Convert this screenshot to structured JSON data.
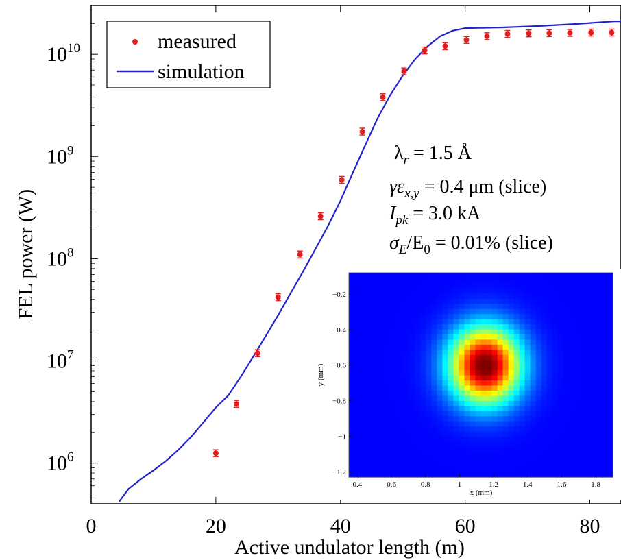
{
  "chart_data": [
    {
      "type": "scatter",
      "xlabel": "Active undulator length (m)",
      "ylabel": "FEL power (W)",
      "xlim": [
        0,
        85
      ],
      "ylim": [
        400000,
        30000000000
      ],
      "yscale": "log",
      "x_ticks": [
        0,
        20,
        40,
        60,
        80
      ],
      "y_ticks": [
        {
          "value": 1000000,
          "base": "10",
          "exp": "6"
        },
        {
          "value": 10000000,
          "base": "10",
          "exp": "7"
        },
        {
          "value": 100000000,
          "base": "10",
          "exp": "8"
        },
        {
          "value": 1000000000,
          "base": "10",
          "exp": "9"
        },
        {
          "value": 10000000000,
          "base": "10",
          "exp": "10"
        }
      ],
      "legend": {
        "position": "top-left",
        "entries": [
          "measured",
          "simulation"
        ]
      },
      "grid": false,
      "series": [
        {
          "name": "measured",
          "color": "#e02020",
          "marker": "dot-with-errorbar",
          "x": [
            20.0,
            23.3,
            26.7,
            30.0,
            33.5,
            36.8,
            40.2,
            43.5,
            46.8,
            50.2,
            53.5,
            56.8,
            60.2,
            63.5,
            66.8,
            70.2,
            73.5,
            76.8,
            80.2,
            83.5
          ],
          "y": [
            1250000,
            3800000,
            11900000,
            42000000,
            110000000,
            260000000,
            590000000,
            1750000000,
            3800000000,
            6800000000,
            10900000000,
            12000000000,
            13800000000,
            15000000000,
            15800000000,
            16000000000,
            16100000000,
            16200000000,
            16300000000,
            16300000000
          ]
        },
        {
          "name": "simulation",
          "color": "#2222cc",
          "marker": "line",
          "x": [
            4.5,
            6,
            8,
            10,
            12,
            14,
            16,
            18,
            20,
            22,
            24,
            26,
            28,
            30,
            32,
            34,
            36,
            38,
            40,
            42,
            44,
            46,
            48,
            50,
            52,
            54,
            56,
            58,
            60,
            62,
            64,
            66,
            68,
            70,
            72,
            74,
            76,
            78,
            80,
            82,
            84,
            85
          ],
          "y": [
            420000,
            560000,
            700000,
            850000,
            1050000,
            1350000,
            1800000,
            2500000,
            3500000,
            4600000,
            7000000,
            11000000,
            17500000,
            28000000,
            46000000,
            75000000,
            125000000,
            210000000,
            370000000,
            700000000,
            1300000000,
            2400000000,
            4000000000,
            6200000000,
            9000000000,
            12000000000,
            15000000000,
            17000000000,
            18000000000,
            18100000000,
            18200000000,
            18300000000,
            18500000000,
            18700000000,
            18900000000,
            19200000000,
            19500000000,
            19800000000,
            20200000000,
            20600000000,
            21000000000,
            21000000000
          ]
        }
      ],
      "annotations": [
        {
          "key": "lambda",
          "sym": "λ",
          "sub": "r",
          "rest": " = 1.5 Å"
        },
        {
          "key": "emittance",
          "sym": "γε",
          "sub": "x,y",
          "rest": " = 0.4 μm (slice)"
        },
        {
          "key": "current",
          "sym": "I",
          "sub": "pk",
          "rest": " = 3.0 kA"
        },
        {
          "key": "spread",
          "sym": "σ",
          "sub": "E",
          "mid": "/E",
          "sub2": "0",
          "rest": " = 0.01% (slice)"
        }
      ]
    },
    {
      "type": "heatmap",
      "xlabel": "x (mm)",
      "ylabel": "y (mm)",
      "xlim": [
        0.35,
        1.9
      ],
      "ylim": [
        -1.23,
        -0.08
      ],
      "x_ticks": [
        0.4,
        0.6,
        0.8,
        1.0,
        1.2,
        1.4,
        1.6,
        1.8
      ],
      "x_tick_labels": [
        "0.4",
        "0.6",
        "0.8",
        "1",
        "1.2",
        "1.4",
        "1.6",
        "1.8"
      ],
      "y_ticks": [
        -0.2,
        -0.4,
        -0.6,
        -0.8,
        -1.0,
        -1.2
      ],
      "y_tick_labels": [
        "−0.2",
        "−0.4",
        "−0.6",
        "−0.8",
        "−1",
        "−1.2"
      ],
      "spot": {
        "center_x": 1.15,
        "center_y": -0.6,
        "sigma_x": 0.13,
        "sigma_y": 0.135
      },
      "colormap": "jet"
    }
  ]
}
